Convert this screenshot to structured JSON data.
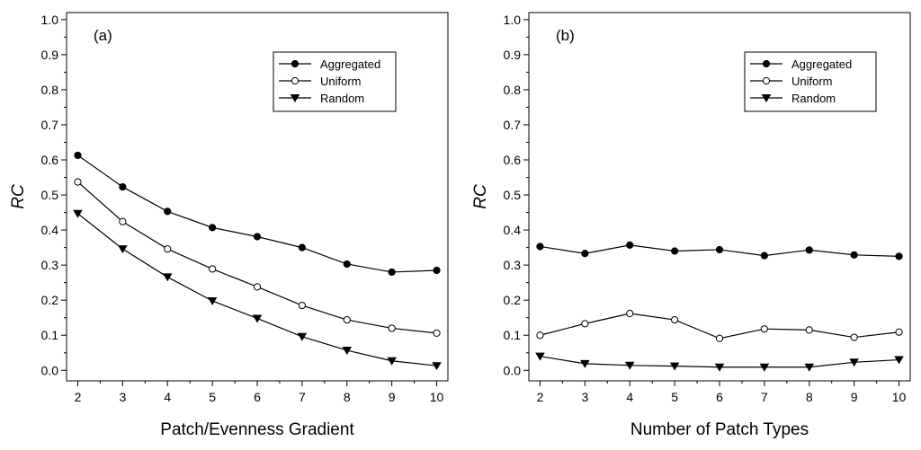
{
  "chart_data": [
    {
      "type": "line",
      "panel_label": "(a)",
      "xlabel": "Patch/Evenness Gradient",
      "ylabel": "RC",
      "x": [
        2,
        3,
        4,
        5,
        6,
        7,
        8,
        9,
        10
      ],
      "x_ticks": [
        "2",
        "3",
        "4",
        "5",
        "6",
        "7",
        "8",
        "9",
        "10"
      ],
      "y_ticks": [
        "0.0",
        "0.1",
        "0.2",
        "0.3",
        "0.4",
        "0.5",
        "0.6",
        "0.7",
        "0.8",
        "0.9",
        "1.0"
      ],
      "xlim": [
        1.75,
        10.25
      ],
      "ylim": [
        -0.03,
        1.02
      ],
      "legend_position": "top-right",
      "series": [
        {
          "name": "Aggregated",
          "marker": "filled-circle",
          "values": [
            0.613,
            0.523,
            0.453,
            0.407,
            0.381,
            0.35,
            0.303,
            0.28,
            0.285
          ]
        },
        {
          "name": "Uniform",
          "marker": "open-circle",
          "values": [
            0.537,
            0.424,
            0.346,
            0.289,
            0.238,
            0.185,
            0.144,
            0.12,
            0.106
          ]
        },
        {
          "name": "Random",
          "marker": "down-triangle",
          "values": [
            0.447,
            0.346,
            0.266,
            0.198,
            0.148,
            0.096,
            0.057,
            0.027,
            0.013
          ]
        }
      ]
    },
    {
      "type": "line",
      "panel_label": "(b)",
      "xlabel": "Number of Patch Types",
      "ylabel": "RC",
      "x": [
        2,
        3,
        4,
        5,
        6,
        7,
        8,
        9,
        10
      ],
      "x_ticks": [
        "2",
        "3",
        "4",
        "5",
        "6",
        "7",
        "8",
        "9",
        "10"
      ],
      "y_ticks": [
        "0.0",
        "0.1",
        "0.2",
        "0.3",
        "0.4",
        "0.5",
        "0.6",
        "0.7",
        "0.8",
        "0.9",
        "1.0"
      ],
      "xlim": [
        1.75,
        10.25
      ],
      "ylim": [
        -0.03,
        1.02
      ],
      "legend_position": "top-right",
      "series": [
        {
          "name": "Aggregated",
          "marker": "filled-circle",
          "values": [
            0.353,
            0.333,
            0.357,
            0.34,
            0.344,
            0.327,
            0.343,
            0.329,
            0.325
          ]
        },
        {
          "name": "Uniform",
          "marker": "open-circle",
          "values": [
            0.1,
            0.133,
            0.162,
            0.144,
            0.091,
            0.118,
            0.115,
            0.094,
            0.109
          ]
        },
        {
          "name": "Random",
          "marker": "down-triangle",
          "values": [
            0.04,
            0.019,
            0.014,
            0.012,
            0.009,
            0.009,
            0.009,
            0.023,
            0.03
          ]
        }
      ]
    }
  ]
}
